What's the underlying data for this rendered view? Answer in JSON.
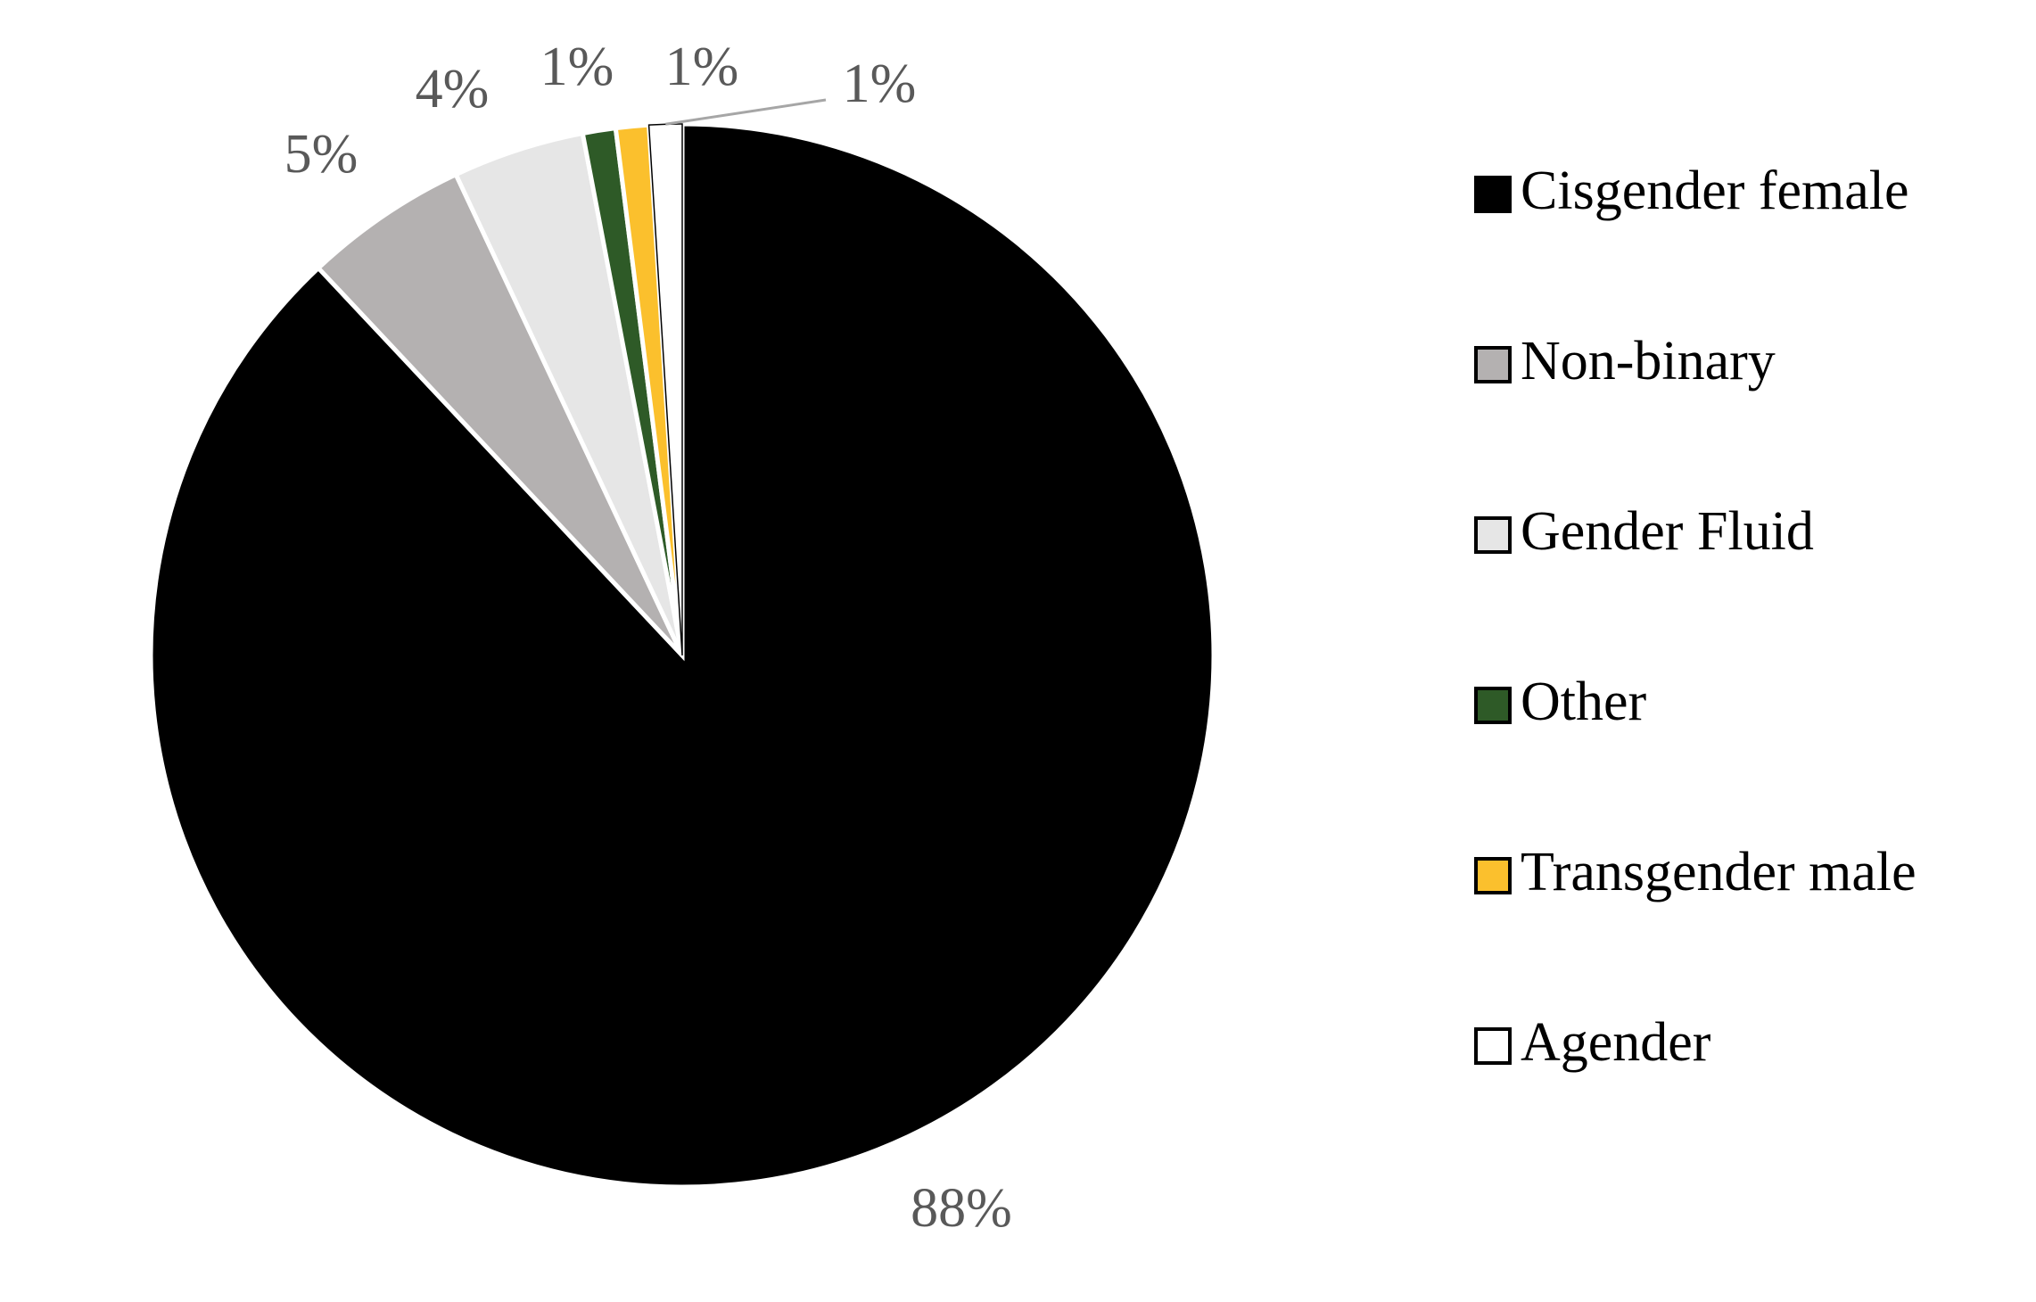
{
  "chart_data": {
    "type": "pie",
    "categories": [
      "Cisgender female",
      "Non-binary",
      "Gender Fluid",
      "Other",
      "Transgender male",
      "Agender"
    ],
    "values": [
      88,
      5,
      4,
      1,
      1,
      1
    ],
    "value_labels": [
      "88%",
      "5%",
      "4%",
      "1%",
      "1%",
      "1%"
    ],
    "colors": [
      "#000000",
      "#b4b1b1",
      "#e6e6e6",
      "#2e5a27",
      "#fbc02d",
      "#ffffff"
    ],
    "legend": "right"
  }
}
